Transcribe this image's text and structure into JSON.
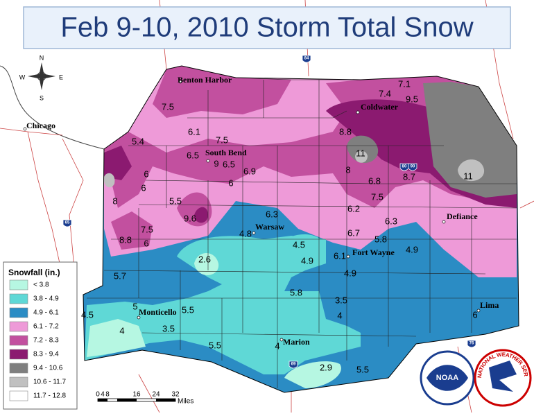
{
  "title": "Feb 9-10, 2010 Storm Total Snow",
  "compass": {
    "north": "N",
    "east": "E",
    "south": "S",
    "west": "W"
  },
  "cities": [
    "Benton Harbor",
    "Coldwater",
    "Chicago",
    "South Bend",
    "Defiance",
    "Warsaw",
    "Fort Wayne",
    "Monticello",
    "Marion",
    "Lima"
  ],
  "observations": [
    "7.1",
    "7.4",
    "9.5",
    "7.5",
    "8.8",
    "6.1",
    "7.5",
    "5.4",
    "11",
    "6.5",
    "9",
    "6.5",
    "6.9",
    "8",
    "8.7",
    "11",
    "6",
    "6",
    "6.8",
    "6",
    "7.5",
    "8",
    "5.5",
    "6.2",
    "6.3",
    "9.6",
    "6.3",
    "7.5",
    "4.8",
    "6.7",
    "8.8",
    "6",
    "4.5",
    "5.8",
    "4.9",
    "2.6",
    "4.9",
    "6.1",
    "5.7",
    "4.9",
    "5.8",
    "3.5",
    "5",
    "5.5",
    "4.5",
    "4",
    "6",
    "4",
    "3.5",
    "5.5",
    "4",
    "2.9",
    "5.5"
  ],
  "highways": [
    "84",
    "80",
    "90",
    "69",
    "65",
    "76"
  ],
  "legend": {
    "title": "Snowfall (in.)",
    "items": [
      {
        "label": "< 3.8",
        "color": "#b6f7e2"
      },
      {
        "label": "3.8 - 4.9",
        "color": "#5fd8d6"
      },
      {
        "label": "4.9 - 6.1",
        "color": "#2b8cc4"
      },
      {
        "label": "6.1 - 7.2",
        "color": "#ee9ad8"
      },
      {
        "label": "7.2 - 8.3",
        "color": "#c2509f"
      },
      {
        "label": "8.3 - 9.4",
        "color": "#8b1a70"
      },
      {
        "label": "9.4 - 10.6",
        "color": "#7f7f7f"
      },
      {
        "label": "10.6 - 11.7",
        "color": "#c0c0c0"
      },
      {
        "label": "11.7 - 12.8",
        "color": "#ffffff"
      }
    ]
  },
  "scale": {
    "ticks": [
      "0",
      "4",
      "8",
      "16",
      "24",
      "32"
    ],
    "unit": "Miles"
  },
  "logos": {
    "noaa": "NOAA",
    "nws": "NATIONAL WEATHER SERVICE"
  }
}
